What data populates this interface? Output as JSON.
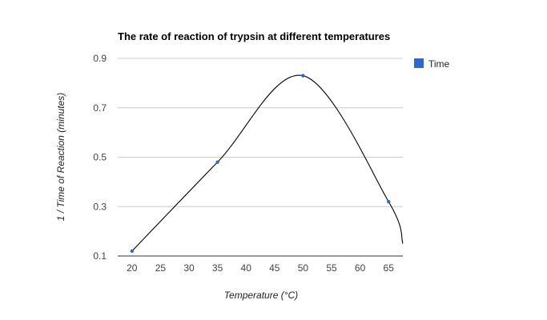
{
  "chart_data": {
    "type": "line",
    "title": "The rate of reaction of trypsin at different temperatures",
    "xlabel": "Temperature (°C)",
    "ylabel": "1 / Time of Reaction (minutes)",
    "x_ticks": [
      "20",
      "25",
      "30",
      "35",
      "40",
      "45",
      "50",
      "55",
      "60",
      "65"
    ],
    "y_ticks": [
      "0.1",
      "0.3",
      "0.5",
      "0.7",
      "0.9"
    ],
    "xlim": [
      17.5,
      67.5
    ],
    "ylim": [
      0.1,
      0.9
    ],
    "grid": true,
    "smooth": true,
    "legend_position": "right",
    "series": [
      {
        "name": "Time",
        "color": "#3366cc",
        "line_color": "#000000",
        "points": [
          {
            "x": 20,
            "y": 0.12
          },
          {
            "x": 35,
            "y": 0.48
          },
          {
            "x": 50,
            "y": 0.83
          },
          {
            "x": 65,
            "y": 0.32
          }
        ],
        "trend_end": {
          "x": 67.5,
          "y": 0.15
        }
      }
    ]
  }
}
